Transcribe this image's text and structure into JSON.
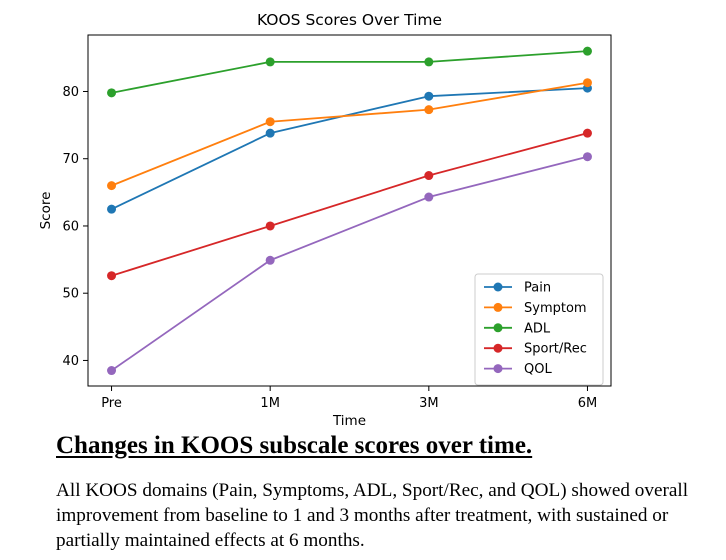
{
  "chart_data": {
    "type": "line",
    "title": "KOOS Scores Over Time",
    "xlabel": "Time",
    "ylabel": "Score",
    "categories": [
      "Pre",
      "1M",
      "3M",
      "6M"
    ],
    "ylim": [
      36.2,
      88.4
    ],
    "yticks": [
      40,
      50,
      60,
      70,
      80
    ],
    "grid": false,
    "legend_position": "lower right",
    "series": [
      {
        "name": "Pain",
        "color": "#1f77b4",
        "values": [
          62.5,
          73.8,
          79.3,
          80.5
        ]
      },
      {
        "name": "Symptom",
        "color": "#ff7f0e",
        "values": [
          66.0,
          75.5,
          77.3,
          81.3
        ]
      },
      {
        "name": "ADL",
        "color": "#2ca02c",
        "values": [
          79.8,
          84.4,
          84.4,
          86.0
        ]
      },
      {
        "name": "Sport/Rec",
        "color": "#d62728",
        "values": [
          52.6,
          60.0,
          67.5,
          73.8
        ]
      },
      {
        "name": "QOL",
        "color": "#9467bd",
        "values": [
          38.5,
          54.9,
          64.3,
          70.3
        ]
      }
    ]
  },
  "caption": {
    "title": "Changes in KOOS subscale scores over time.",
    "body": "All KOOS domains (Pain, Symptoms, ADL, Sport/Rec, and QOL) showed overall improvement from baseline to 1 and 3 months after treatment, with sustained or partially maintained effects at 6 months."
  }
}
